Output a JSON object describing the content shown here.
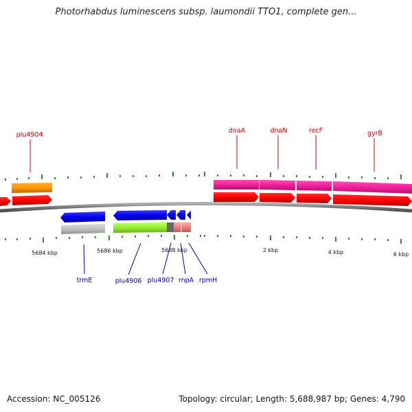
{
  "title": "Photorhabdus luminescens subsp. laumondii TTO1, complete gen...",
  "footer": {
    "accession": "Accession: NC_005126",
    "summary": "Topology: circular; Length: 5,688,987 bp; Genes: 4,790"
  },
  "colors": {
    "forward_label": "#cc0000",
    "reverse_label": "#000099",
    "backbone": "#808080",
    "tick": "#006600"
  },
  "scale_labels": [
    "5684 kbp",
    "5686 kbp",
    "5688 kbp",
    "2 kbp",
    "4 kbp",
    "6 kbp"
  ],
  "forward_genes": [
    {
      "name": "plu4904",
      "label": "plu4904"
    },
    {
      "name": "dnaA",
      "label": "dnaA"
    },
    {
      "name": "dnaN",
      "label": "dnaN"
    },
    {
      "name": "recF",
      "label": "recF"
    },
    {
      "name": "gyrB",
      "label": "gyrB"
    }
  ],
  "reverse_genes": [
    {
      "name": "trmE",
      "label": "trmE"
    },
    {
      "name": "plu4906",
      "label": "plu4906"
    },
    {
      "name": "plu4907",
      "label": "plu4907"
    },
    {
      "name": "rnpA",
      "label": "rnpA"
    },
    {
      "name": "rpmH",
      "label": "rpmH"
    }
  ]
}
